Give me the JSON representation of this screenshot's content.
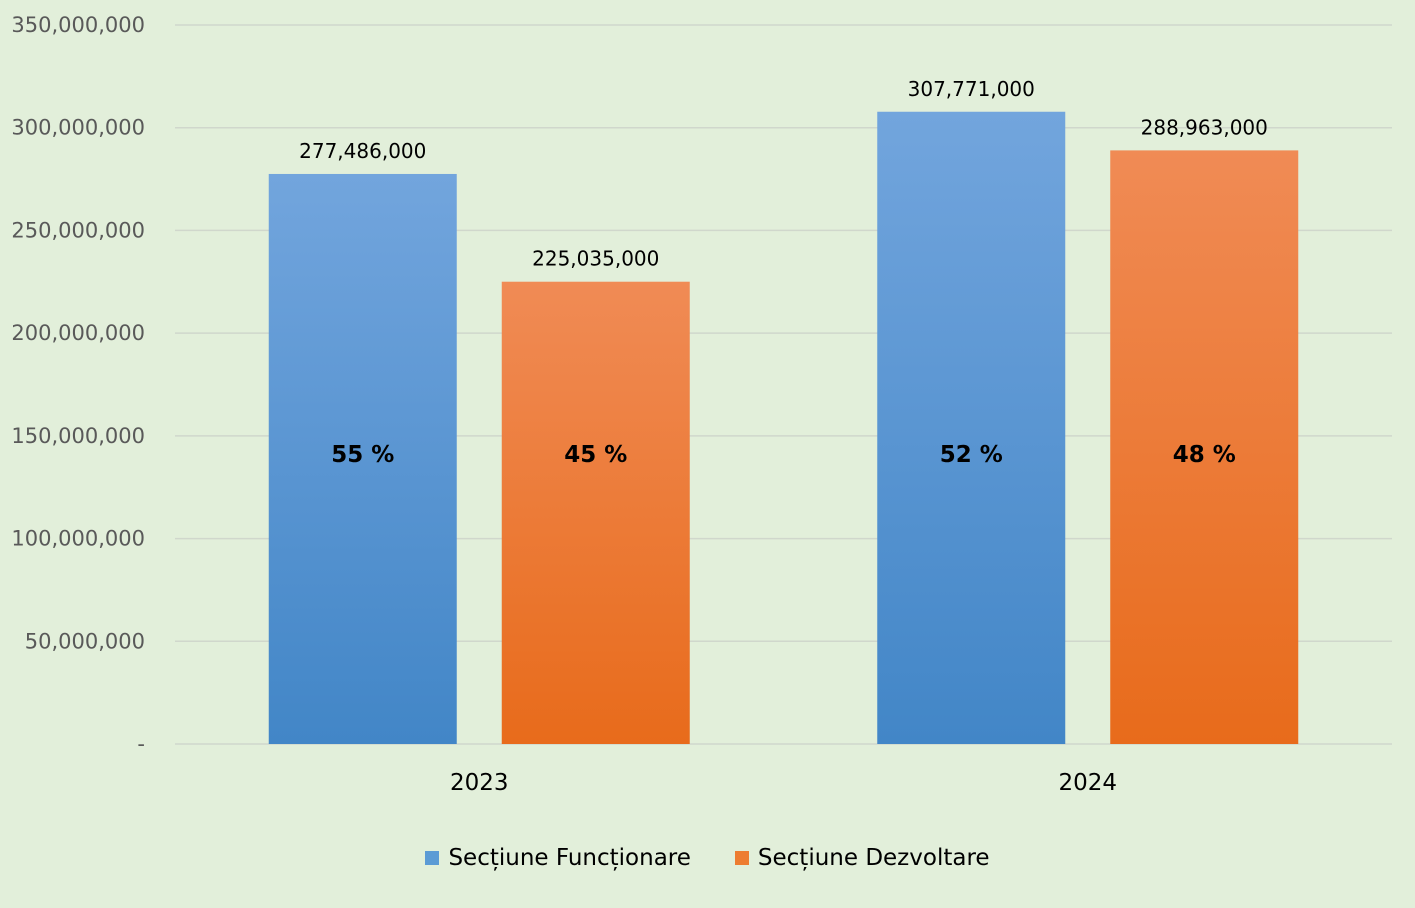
{
  "chart_data": {
    "type": "bar",
    "categories": [
      "2023",
      "2024"
    ],
    "series": [
      {
        "name": "Secțiune Funcționare",
        "values": [
          277486000,
          307771000
        ],
        "value_labels": [
          "277,486,000",
          "307,771,000"
        ],
        "percent_labels": [
          "55 %",
          "52 %"
        ],
        "color": "#5b9bd5"
      },
      {
        "name": "Secțiune Dezvoltare",
        "values": [
          225035000,
          288963000
        ],
        "value_labels": [
          "225,035,000",
          "288,963,000"
        ],
        "percent_labels": [
          "45 %",
          "48 %"
        ],
        "color": "#ed7d31"
      }
    ],
    "ylim": [
      0,
      350000000
    ],
    "yticks": [
      {
        "value": 0,
        "label": "-"
      },
      {
        "value": 50000000,
        "label": "50,000,000"
      },
      {
        "value": 100000000,
        "label": "100,000,000"
      },
      {
        "value": 150000000,
        "label": "150,000,000"
      },
      {
        "value": 200000000,
        "label": "200,000,000"
      },
      {
        "value": 250000000,
        "label": "250,000,000"
      },
      {
        "value": 300000000,
        "label": "300,000,000"
      },
      {
        "value": 350000000,
        "label": "350,000,000"
      }
    ],
    "grid": true,
    "legend_position": "bottom",
    "background": "#e2efda"
  }
}
